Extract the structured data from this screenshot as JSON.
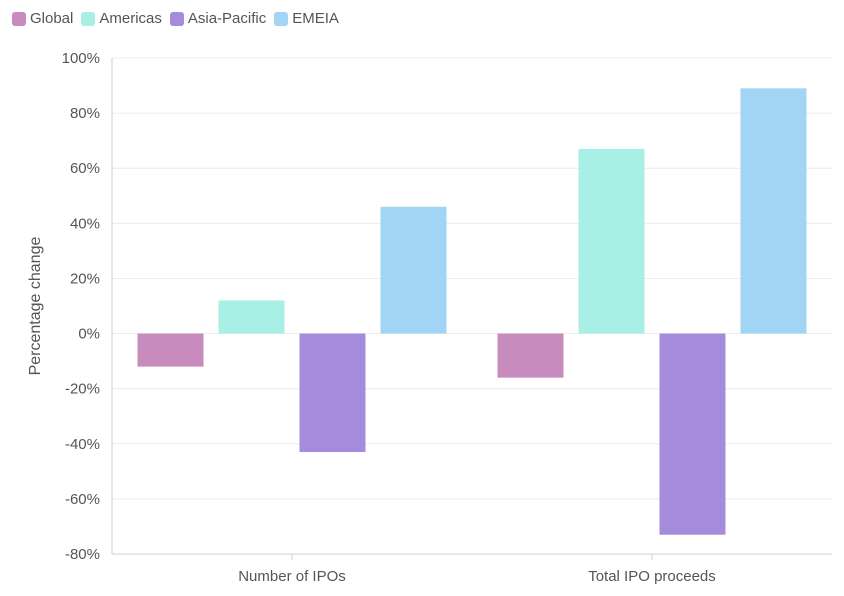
{
  "chart_data": {
    "type": "bar",
    "categories": [
      "Number of IPOs",
      "Total IPO proceeds"
    ],
    "series": [
      {
        "name": "Global",
        "color": "#c88bbd",
        "values": [
          -12,
          -16
        ]
      },
      {
        "name": "Americas",
        "color": "#a8efe6",
        "values": [
          12,
          67
        ]
      },
      {
        "name": "Asia-Pacific",
        "color": "#a58bdc",
        "values": [
          -43,
          -73
        ]
      },
      {
        "name": "EMEIA",
        "color": "#a2d5f5",
        "values": [
          46,
          89
        ]
      }
    ],
    "title": "",
    "xlabel": "",
    "ylabel": "Percentage change",
    "ylim": [
      -80,
      100
    ],
    "yticks": [
      "100%",
      "80%",
      "60%",
      "40%",
      "20%",
      "0%",
      "-20%",
      "-40%",
      "-60%",
      "-80%"
    ],
    "ytick_values": [
      100,
      80,
      60,
      40,
      20,
      0,
      -20,
      -40,
      -60,
      -80
    ],
    "grid": true,
    "legend_position": "top-left"
  }
}
